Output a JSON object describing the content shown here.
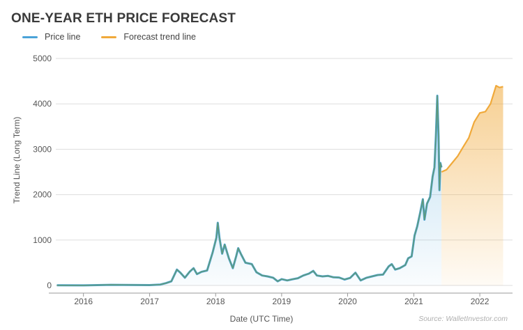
{
  "title": "ONE-YEAR ETH PRICE FORECAST",
  "source": "Source: WalletInvestor.com",
  "colors": {
    "price": "#4aa3d8",
    "price_outline": "#5f9a7a",
    "forecast": "#f0a93a",
    "grid": "#dddddd"
  },
  "chart_data": {
    "type": "area",
    "xlabel": "Date (UTC Time)",
    "ylabel": "Trend Line (Long Term)",
    "ylim": [
      0,
      5000
    ],
    "xlim": [
      "2015-08-01",
      "2022-07-01"
    ],
    "y_ticks": [
      0,
      1000,
      2000,
      3000,
      4000,
      5000
    ],
    "x_ticks": [
      "2016",
      "2017",
      "2018",
      "2019",
      "2020",
      "2021",
      "2022"
    ],
    "grid": true,
    "legend_position": "top-left",
    "series": [
      {
        "name": "Price line",
        "points": [
          [
            "2015-08-07",
            3
          ],
          [
            "2016-01-01",
            1
          ],
          [
            "2016-06-01",
            14
          ],
          [
            "2017-01-01",
            8
          ],
          [
            "2017-03-01",
            20
          ],
          [
            "2017-04-01",
            50
          ],
          [
            "2017-05-01",
            90
          ],
          [
            "2017-06-01",
            350
          ],
          [
            "2017-06-20",
            280
          ],
          [
            "2017-07-15",
            170
          ],
          [
            "2017-08-10",
            300
          ],
          [
            "2017-09-01",
            380
          ],
          [
            "2017-09-20",
            250
          ],
          [
            "2017-10-15",
            300
          ],
          [
            "2017-11-15",
            330
          ],
          [
            "2017-12-15",
            720
          ],
          [
            "2018-01-05",
            1050
          ],
          [
            "2018-01-13",
            1380
          ],
          [
            "2018-01-22",
            1050
          ],
          [
            "2018-02-06",
            700
          ],
          [
            "2018-02-20",
            900
          ],
          [
            "2018-03-15",
            600
          ],
          [
            "2018-04-06",
            380
          ],
          [
            "2018-04-25",
            650
          ],
          [
            "2018-05-06",
            820
          ],
          [
            "2018-05-20",
            700
          ],
          [
            "2018-06-15",
            500
          ],
          [
            "2018-07-20",
            470
          ],
          [
            "2018-08-15",
            290
          ],
          [
            "2018-09-15",
            220
          ],
          [
            "2018-10-15",
            200
          ],
          [
            "2018-11-15",
            170
          ],
          [
            "2018-12-10",
            90
          ],
          [
            "2019-01-01",
            140
          ],
          [
            "2019-02-01",
            110
          ],
          [
            "2019-03-01",
            135
          ],
          [
            "2019-04-01",
            160
          ],
          [
            "2019-05-01",
            220
          ],
          [
            "2019-06-01",
            260
          ],
          [
            "2019-06-25",
            320
          ],
          [
            "2019-07-15",
            220
          ],
          [
            "2019-08-15",
            200
          ],
          [
            "2019-09-15",
            210
          ],
          [
            "2019-10-15",
            180
          ],
          [
            "2019-11-15",
            175
          ],
          [
            "2019-12-15",
            130
          ],
          [
            "2020-01-15",
            165
          ],
          [
            "2020-02-13",
            280
          ],
          [
            "2020-03-13",
            110
          ],
          [
            "2020-04-15",
            170
          ],
          [
            "2020-05-15",
            200
          ],
          [
            "2020-06-15",
            230
          ],
          [
            "2020-07-15",
            240
          ],
          [
            "2020-08-15",
            420
          ],
          [
            "2020-09-01",
            470
          ],
          [
            "2020-09-20",
            350
          ],
          [
            "2020-10-15",
            380
          ],
          [
            "2020-11-15",
            450
          ],
          [
            "2020-12-01",
            600
          ],
          [
            "2020-12-20",
            640
          ],
          [
            "2021-01-05",
            1100
          ],
          [
            "2021-01-20",
            1300
          ],
          [
            "2021-02-05",
            1600
          ],
          [
            "2021-02-20",
            1900
          ],
          [
            "2021-03-01",
            1450
          ],
          [
            "2021-03-15",
            1800
          ],
          [
            "2021-04-01",
            1950
          ],
          [
            "2021-04-15",
            2400
          ],
          [
            "2021-04-25",
            2600
          ],
          [
            "2021-05-03",
            3300
          ],
          [
            "2021-05-11",
            4180
          ],
          [
            "2021-05-18",
            3300
          ],
          [
            "2021-05-23",
            2100
          ],
          [
            "2021-05-28",
            2700
          ],
          [
            "2021-06-03",
            2600
          ]
        ]
      },
      {
        "name": "Forecast trend line",
        "points": [
          [
            "2021-06-03",
            2500
          ],
          [
            "2021-07-01",
            2550
          ],
          [
            "2021-08-01",
            2700
          ],
          [
            "2021-09-01",
            2850
          ],
          [
            "2021-10-01",
            3050
          ],
          [
            "2021-11-01",
            3250
          ],
          [
            "2021-12-01",
            3600
          ],
          [
            "2022-01-01",
            3800
          ],
          [
            "2022-02-01",
            3830
          ],
          [
            "2022-03-01",
            4000
          ],
          [
            "2022-04-01",
            4400
          ],
          [
            "2022-04-20",
            4360
          ],
          [
            "2022-05-10",
            4380
          ]
        ]
      }
    ]
  }
}
